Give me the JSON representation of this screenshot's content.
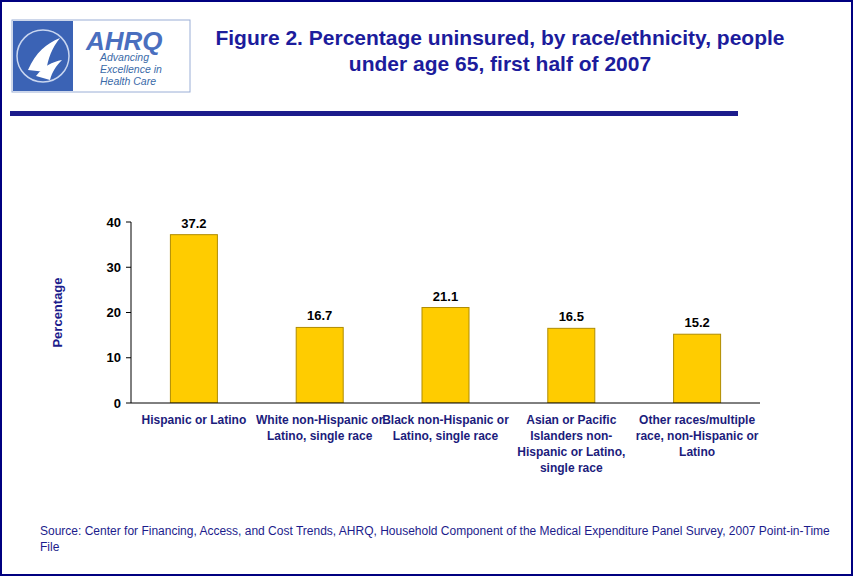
{
  "chart_data": {
    "type": "bar",
    "title": "Figure 2. Percentage uninsured, by race/ethnicity, people under age 65, first half of 2007",
    "ylabel": "Percentage",
    "categories": [
      "Hispanic or Latino",
      "White non-Hispanic or Latino, single race",
      "Black non-Hispanic or Latino, single race",
      "Asian or Pacific Islanders non-Hispanic or Latino, single race",
      "Other races/multiple race, non-Hispanic or Latino"
    ],
    "values": [
      37.2,
      16.7,
      21.1,
      16.5,
      15.2
    ],
    "color": "#ffcc00",
    "ylim": [
      0,
      40
    ],
    "yticks": [
      0,
      10,
      20,
      30,
      40
    ],
    "grid": false,
    "data_labels": true,
    "annotations": [
      "AHRQ",
      "Advancing Excellence in Health Care",
      "Source: Center for Financing, Access, and Cost Trends, AHRQ, Household Component of the Medical Expenditure Panel Survey, 2007 Point-in-Time File"
    ]
  }
}
